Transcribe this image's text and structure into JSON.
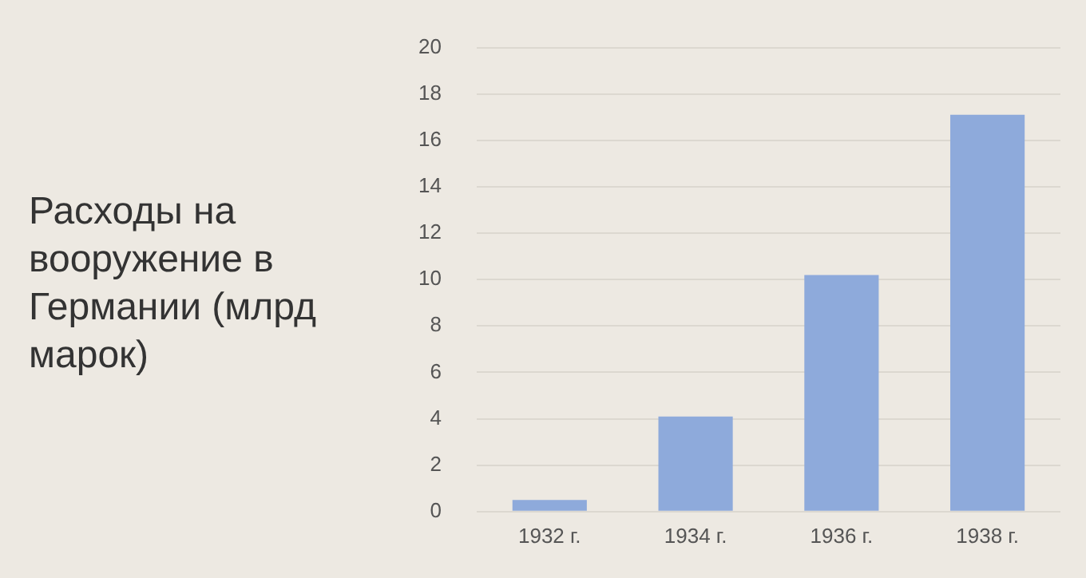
{
  "chart_data": {
    "type": "bar",
    "title": "Расходы на вооружение в Германии (млрд марок)",
    "categories": [
      "1932 г.",
      "1934 г.",
      "1936 г.",
      "1938 г."
    ],
    "values": [
      0.5,
      4.1,
      10.2,
      17.1
    ],
    "color": "#8eaadb",
    "ylim": [
      0,
      20
    ],
    "yticks": [
      0,
      2,
      4,
      6,
      8,
      10,
      12,
      14,
      16,
      18,
      20
    ],
    "grid": "y"
  }
}
